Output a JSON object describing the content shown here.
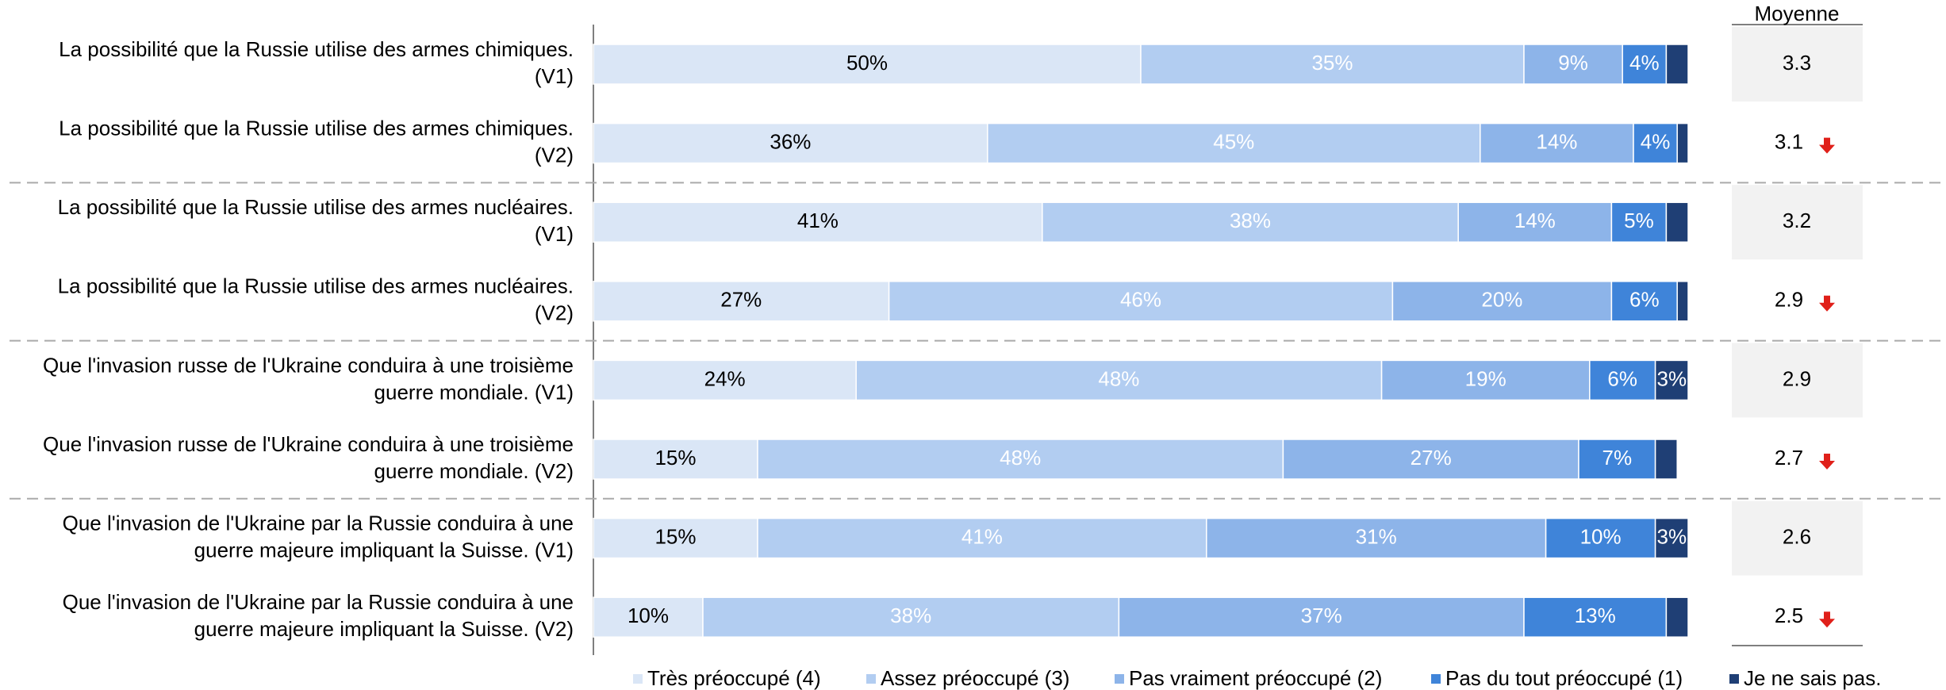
{
  "chart_data": {
    "type": "stacked-bar-horizontal",
    "categories": [
      [
        "La possibilité que la Russie utilise des armes chimiques.",
        "(V1)"
      ],
      [
        "La possibilité que la Russie utilise des armes chimiques.",
        "(V2)"
      ],
      [
        "La possibilité que la Russie utilise des armes nucléaires.",
        "(V1)"
      ],
      [
        "La possibilité que la Russie utilise des armes nucléaires.",
        "(V2)"
      ],
      [
        "Que l'invasion russe de l'Ukraine conduira à une troisième",
        "guerre mondiale. (V1)"
      ],
      [
        "Que l'invasion russe de l'Ukraine conduira à une troisième",
        "guerre mondiale. (V2)"
      ],
      [
        "Que l'invasion de l'Ukraine par la Russie conduira à une",
        "guerre majeure impliquant la Suisse. (V1)"
      ],
      [
        "Que l'invasion de l'Ukraine par la Russie conduira à une",
        "guerre majeure impliquant la Suisse. (V2)"
      ]
    ],
    "xlim": [
      0,
      100
    ],
    "series": [
      {
        "name": "Très préoccupé (4)",
        "color": "#dae6f6",
        "label_color": "#000000",
        "values": [
          50,
          36,
          41,
          27,
          24,
          15,
          15,
          10
        ],
        "value_labels": [
          "50%",
          "36%",
          "41%",
          "27%",
          "24%",
          "15%",
          "15%",
          "10%"
        ]
      },
      {
        "name": "Assez préoccupé (3)",
        "color": "#b2cdf1",
        "label_color": "#ffffff",
        "values": [
          35,
          45,
          38,
          46,
          48,
          48,
          41,
          38
        ],
        "value_labels": [
          "35%",
          "45%",
          "38%",
          "46%",
          "48%",
          "48%",
          "41%",
          "38%"
        ]
      },
      {
        "name": "Pas vraiment préoccupé (2)",
        "color": "#8db4e9",
        "label_color": "#ffffff",
        "values": [
          9,
          14,
          14,
          20,
          19,
          27,
          31,
          37
        ],
        "value_labels": [
          "9%",
          "14%",
          "14%",
          "20%",
          "19%",
          "27%",
          "31%",
          "37%"
        ]
      },
      {
        "name": "Pas du tout préoccupé (1)",
        "color": "#3f84d9",
        "label_color": "#ffffff",
        "values": [
          4,
          4,
          5,
          6,
          6,
          7,
          10,
          13
        ],
        "value_labels": [
          "4%",
          "4%",
          "5%",
          "6%",
          "6%",
          "7%",
          "10%",
          "13%"
        ]
      },
      {
        "name": "Je ne sais pas.",
        "color": "#1f3f75",
        "label_color": "#ffffff",
        "values": [
          2,
          1,
          2,
          1,
          3,
          2,
          3,
          2
        ],
        "value_labels": [
          null,
          null,
          null,
          null,
          "3%",
          null,
          "3%",
          null
        ]
      }
    ],
    "mean": {
      "title": "Moyenne",
      "values": [
        3.3,
        3.1,
        3.2,
        2.9,
        2.9,
        2.7,
        2.6,
        2.5
      ],
      "trend": [
        null,
        "down",
        null,
        "down",
        null,
        "down",
        null,
        "down"
      ]
    }
  }
}
